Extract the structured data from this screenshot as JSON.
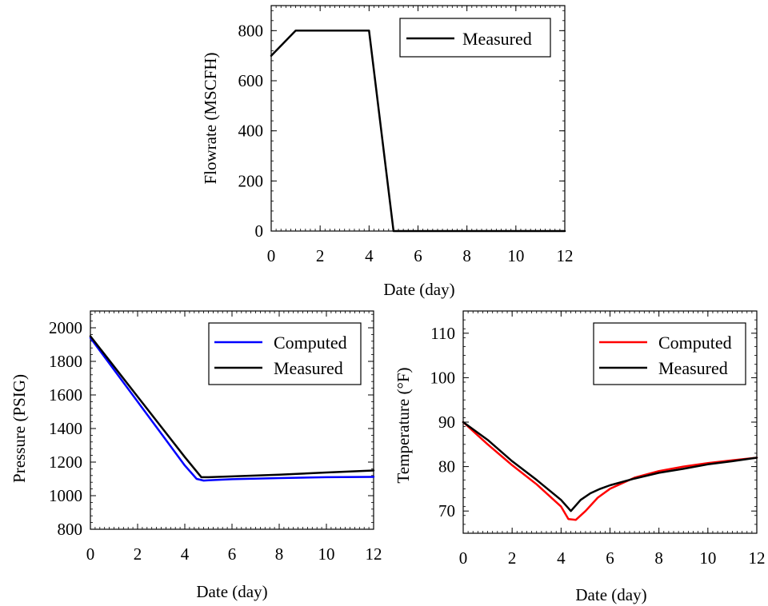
{
  "chart_data": [
    {
      "type": "line",
      "xlabel": "Date (day)",
      "ylabel": "Flowrate (MSCFH)",
      "xlim": [
        0,
        12
      ],
      "ylim": [
        0,
        900
      ],
      "x_ticks": [
        0,
        2,
        4,
        6,
        8,
        10,
        12
      ],
      "y_ticks": [
        0,
        200,
        400,
        600,
        800
      ],
      "legend_position": "top-right",
      "grid": false,
      "series": [
        {
          "name": "Measured",
          "color": "#000000",
          "x": [
            0,
            1,
            4,
            5,
            12
          ],
          "y": [
            700,
            800,
            800,
            0,
            0
          ]
        }
      ]
    },
    {
      "type": "line",
      "xlabel": "Date (day)",
      "ylabel": "Pressure (PSIG)",
      "xlim": [
        0,
        12
      ],
      "ylim": [
        800,
        2100
      ],
      "x_ticks": [
        0,
        2,
        4,
        6,
        8,
        10,
        12
      ],
      "y_ticks": [
        800,
        1000,
        1200,
        1400,
        1600,
        1800,
        2000
      ],
      "legend_position": "top-right",
      "grid": false,
      "series": [
        {
          "name": "Computed",
          "color": "#0000ff",
          "x": [
            0,
            1,
            2,
            3,
            4,
            4.5,
            4.8,
            5,
            6,
            8,
            10,
            12
          ],
          "y": [
            1940,
            1750,
            1560,
            1370,
            1180,
            1100,
            1090,
            1092,
            1098,
            1105,
            1110,
            1112
          ]
        },
        {
          "name": "Measured",
          "color": "#000000",
          "x": [
            0,
            1,
            2,
            3,
            4,
            4.7,
            5,
            6,
            8,
            10,
            12
          ],
          "y": [
            1950,
            1770,
            1590,
            1410,
            1230,
            1110,
            1110,
            1115,
            1125,
            1138,
            1150
          ]
        }
      ]
    },
    {
      "type": "line",
      "xlabel": "Date (day)",
      "ylabel": "Temperature (°F)",
      "xlim": [
        0,
        12
      ],
      "ylim": [
        65,
        115
      ],
      "x_ticks": [
        0,
        2,
        4,
        6,
        8,
        10,
        12
      ],
      "y_ticks": [
        70,
        80,
        90,
        100,
        110
      ],
      "legend_position": "top-right",
      "grid": false,
      "series": [
        {
          "name": "Computed",
          "color": "#ff0000",
          "x": [
            0,
            0.5,
            1,
            2,
            3,
            4,
            4.3,
            4.6,
            5,
            5.5,
            6,
            7,
            8,
            9,
            10,
            11,
            12
          ],
          "y": [
            90,
            87.5,
            85,
            80.3,
            76,
            71,
            68.2,
            68,
            70,
            73,
            75,
            77.5,
            79,
            80,
            80.8,
            81.4,
            82
          ]
        },
        {
          "name": "Measured",
          "color": "#000000",
          "x": [
            0,
            1,
            2,
            3,
            4,
            4.4,
            4.8,
            5.2,
            5.6,
            6,
            7,
            8,
            9,
            10,
            11,
            12
          ],
          "y": [
            90,
            86,
            81.2,
            77,
            72.5,
            70,
            72.5,
            74,
            75,
            75.8,
            77.3,
            78.6,
            79.5,
            80.5,
            81.2,
            82
          ]
        }
      ]
    }
  ]
}
